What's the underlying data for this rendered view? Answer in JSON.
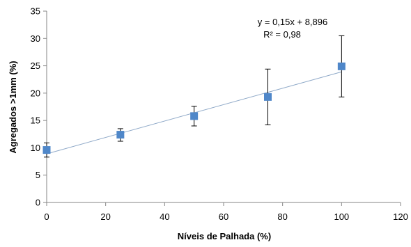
{
  "chart_data": {
    "type": "scatter",
    "xlabel": "Níveis de Palhada (%)",
    "ylabel": "Agregados >1mm (%)",
    "xlim": [
      0,
      120
    ],
    "ylim": [
      0,
      35
    ],
    "xticks": [
      0,
      20,
      40,
      60,
      80,
      100,
      120
    ],
    "yticks": [
      0,
      5,
      10,
      15,
      20,
      25,
      30,
      35
    ],
    "grid": false,
    "marker": "square",
    "marker_color": "#4f87c9",
    "trendline_color": "#8fa9c8",
    "errorbar_color": "#000000",
    "points": [
      {
        "x": 0,
        "y": 9.6,
        "err_low": 8.3,
        "err_high": 10.9
      },
      {
        "x": 25,
        "y": 12.4,
        "err_low": 11.2,
        "err_high": 13.5
      },
      {
        "x": 50,
        "y": 15.8,
        "err_low": 14.0,
        "err_high": 17.6
      },
      {
        "x": 75,
        "y": 19.3,
        "err_low": 14.2,
        "err_high": 24.4
      },
      {
        "x": 100,
        "y": 24.9,
        "err_low": 19.3,
        "err_high": 30.5
      }
    ],
    "trendline": {
      "slope": 0.15,
      "intercept": 8.896,
      "x_range": [
        0,
        100
      ]
    },
    "annotations": {
      "equation": "y = 0,15x + 8,896",
      "r_squared": "R² = 0,98"
    }
  }
}
